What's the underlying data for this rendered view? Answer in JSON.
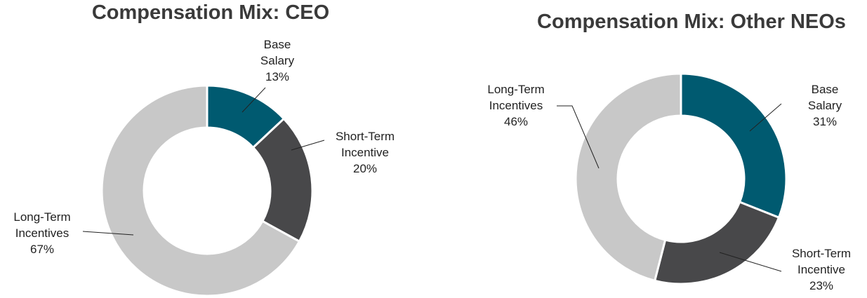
{
  "chart_data": [
    {
      "type": "donut",
      "title": "Compensation Mix: CEO",
      "categories": [
        "Base Salary",
        "Short-Term Incentive",
        "Long-Term Incentives"
      ],
      "values": [
        13,
        20,
        67
      ],
      "value_labels": [
        "13%",
        "20%",
        "67%"
      ],
      "colors": [
        "#005a70",
        "#48484a",
        "#c8c8c8"
      ]
    },
    {
      "type": "donut",
      "title": "Compensation Mix: Other NEOs",
      "categories": [
        "Base Salary",
        "Short-Term Incentive",
        "Long-Term Incentives"
      ],
      "values": [
        31,
        23,
        46
      ],
      "value_labels": [
        "31%",
        "23%",
        "46%"
      ],
      "colors": [
        "#005a70",
        "#48484a",
        "#c8c8c8"
      ]
    }
  ]
}
